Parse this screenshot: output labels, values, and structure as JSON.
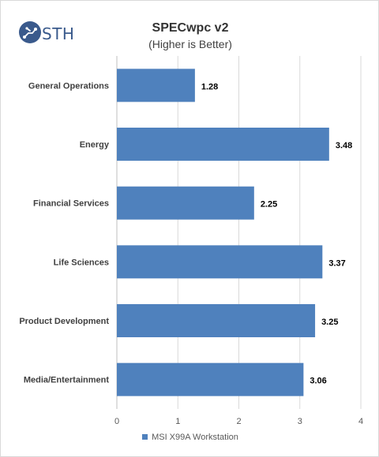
{
  "brand": {
    "name": "STH"
  },
  "chart_data": {
    "type": "bar",
    "orientation": "horizontal",
    "title": "SPECwpc v2",
    "subtitle": "(Higher is Better)",
    "categories": [
      "General Operations",
      "Energy",
      "Financial Services",
      "Life Sciences",
      "Product Development",
      "Media/Entertainment"
    ],
    "series": [
      {
        "name": "MSI X99A Workstation",
        "values": [
          1.28,
          3.48,
          2.25,
          3.37,
          3.25,
          3.06
        ],
        "color": "#4f81bd"
      }
    ],
    "data_labels": [
      "1.28",
      "3.48",
      "2.25",
      "3.37",
      "3.25",
      "3.06"
    ],
    "xlim": [
      0,
      4
    ],
    "x_ticks": [
      "0",
      "1",
      "2",
      "3",
      "4"
    ],
    "grid": true,
    "legend_position": "bottom"
  }
}
